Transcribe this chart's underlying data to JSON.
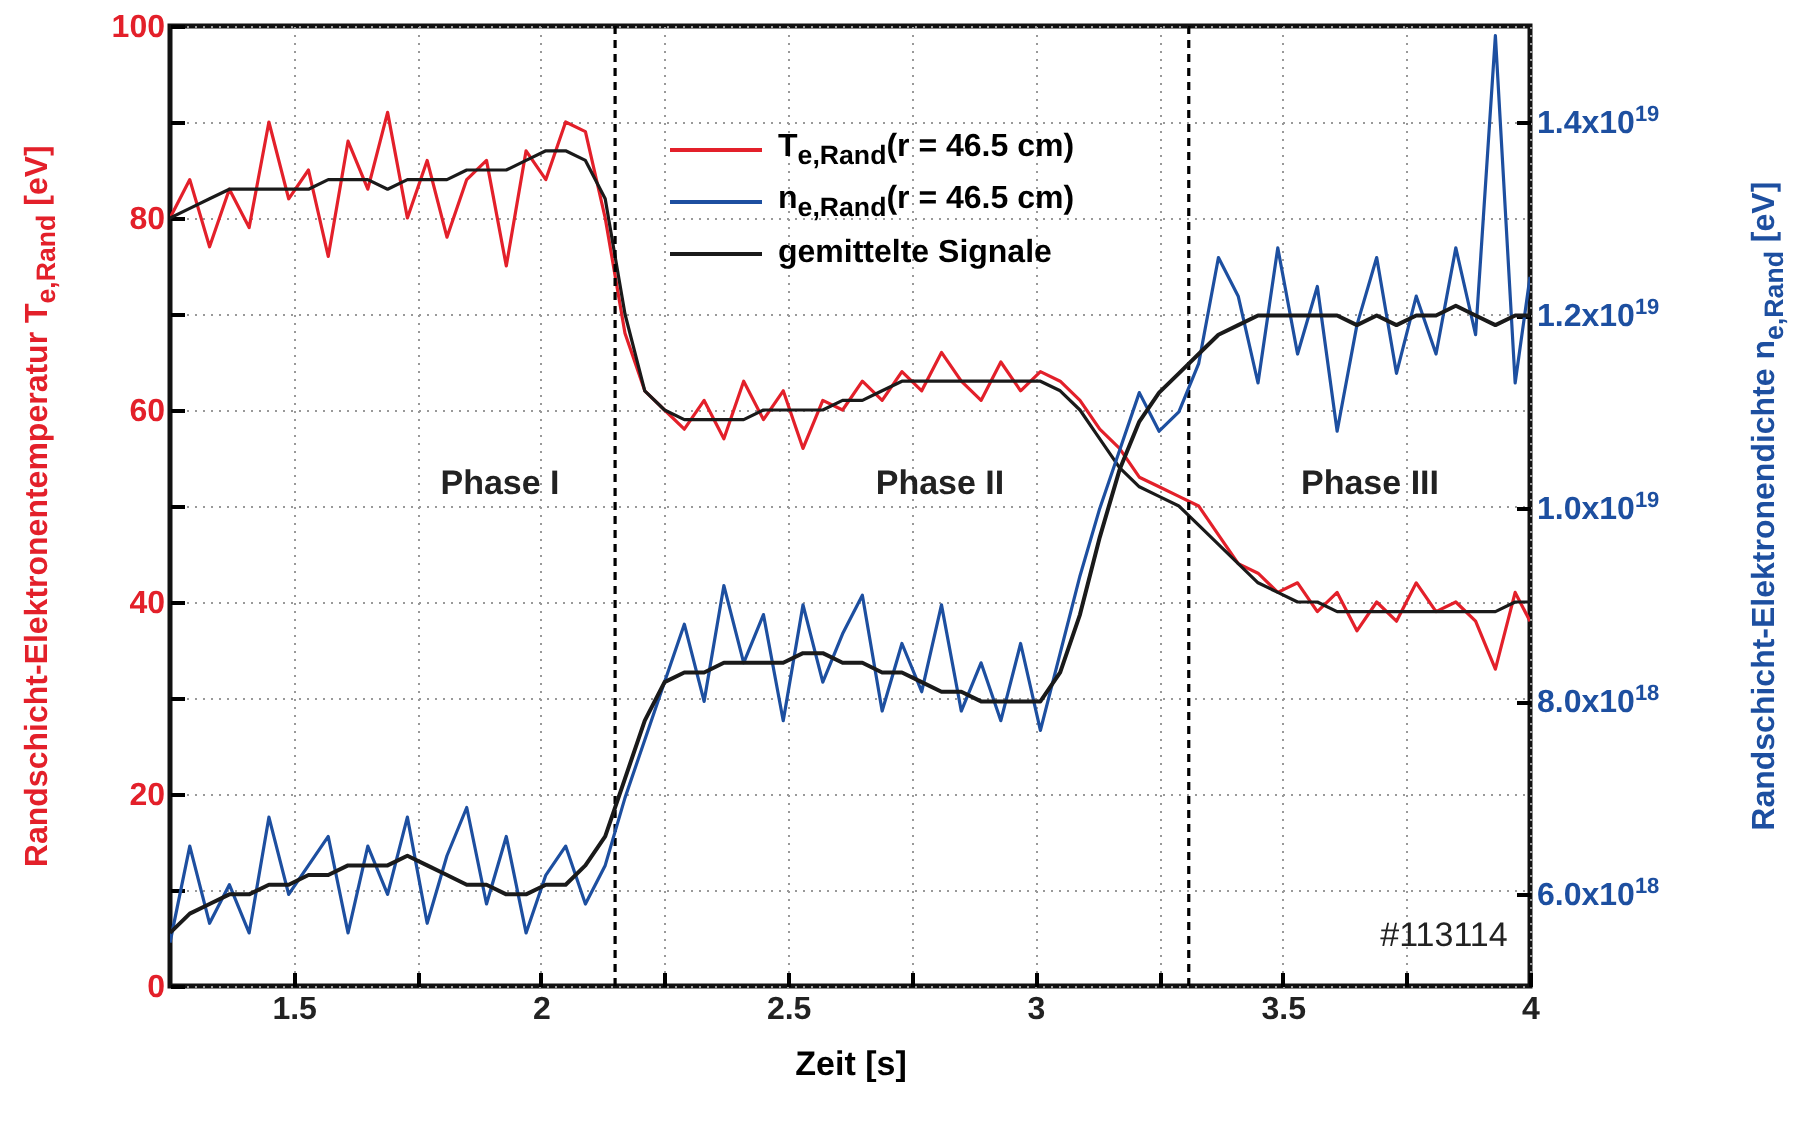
{
  "chart_data": {
    "type": "line",
    "xlabel": "Zeit [s]",
    "ylabel": "Randschicht-Elektronentemperatur T$_{e,Rand}$ [eV]",
    "y2label": "Randschicht-Elektronendichte n$_{e,Rand}$ [eV]",
    "x": [
      1.25,
      1.29,
      1.33,
      1.37,
      1.41,
      1.45,
      1.49,
      1.53,
      1.57,
      1.61,
      1.65,
      1.69,
      1.73,
      1.77,
      1.81,
      1.85,
      1.89,
      1.93,
      1.97,
      2.01,
      2.05,
      2.09,
      2.13,
      2.17,
      2.21,
      2.25,
      2.29,
      2.33,
      2.37,
      2.41,
      2.45,
      2.49,
      2.53,
      2.57,
      2.61,
      2.65,
      2.69,
      2.73,
      2.77,
      2.81,
      2.85,
      2.89,
      2.93,
      2.97,
      3.01,
      3.05,
      3.09,
      3.13,
      3.17,
      3.21,
      3.25,
      3.29,
      3.33,
      3.37,
      3.41,
      3.45,
      3.49,
      3.53,
      3.57,
      3.61,
      3.65,
      3.69,
      3.73,
      3.77,
      3.81,
      3.85,
      3.89,
      3.93,
      3.97,
      4.0
    ],
    "series": [
      {
        "name": "T$_{e,Rand}$(r = 46.5 cm)",
        "color": "#e3202a",
        "values": [
          80,
          84,
          77,
          83,
          79,
          90,
          82,
          85,
          76,
          88,
          83,
          91,
          80,
          86,
          78,
          84,
          86,
          75,
          87,
          84,
          90,
          89,
          80,
          68,
          62,
          60,
          58,
          61,
          57,
          63,
          59,
          62,
          56,
          61,
          60,
          63,
          61,
          64,
          62,
          66,
          63,
          61,
          65,
          62,
          64,
          63,
          61,
          58,
          56,
          53,
          52,
          51,
          50,
          47,
          44,
          43,
          41,
          42,
          39,
          41,
          37,
          40,
          38,
          42,
          39,
          40,
          38,
          33,
          41,
          38
        ]
      },
      {
        "name": "n$_{e,Rand}$(r = 46.5 cm)",
        "color": "#1d4fa0",
        "axis": "y2",
        "values": [
          5.5e+18,
          6.5e+18,
          5.7e+18,
          6.1e+18,
          5.6e+18,
          6.8e+18,
          6e+18,
          6.3e+18,
          6.6e+18,
          5.6e+18,
          6.5e+18,
          6e+18,
          6.8e+18,
          5.7e+18,
          6.4e+18,
          6.9e+18,
          5.9e+18,
          6.6e+18,
          5.6e+18,
          6.2e+18,
          6.5e+18,
          5.9e+18,
          6.3e+18,
          7e+18,
          7.6e+18,
          8.2e+18,
          8.8e+18,
          8e+18,
          9.2e+18,
          8.4e+18,
          8.9e+18,
          7.8e+18,
          9e+18,
          8.2e+18,
          8.7e+18,
          9.1e+18,
          7.9e+18,
          8.6e+18,
          8.1e+18,
          9e+18,
          7.9e+18,
          8.4e+18,
          7.8e+18,
          8.6e+18,
          7.7e+18,
          8.5e+18,
          9.3e+18,
          1e+19,
          1.06e+19,
          1.12e+19,
          1.08e+19,
          1.1e+19,
          1.15e+19,
          1.26e+19,
          1.22e+19,
          1.13e+19,
          1.27e+19,
          1.16e+19,
          1.23e+19,
          1.08e+19,
          1.19e+19,
          1.26e+19,
          1.14e+19,
          1.22e+19,
          1.16e+19,
          1.27e+19,
          1.18e+19,
          1.49e+19,
          1.13e+19,
          1.24e+19
        ]
      },
      {
        "name": "gemittelte Signale",
        "color": "#1a1a1a",
        "values": [
          80,
          81,
          82,
          83,
          83,
          83,
          83,
          83,
          84,
          84,
          84,
          83,
          84,
          84,
          84,
          85,
          85,
          85,
          86,
          87,
          87,
          86,
          82,
          70,
          62,
          60,
          59,
          59,
          59,
          59,
          60,
          60,
          60,
          60,
          61,
          61,
          62,
          63,
          63,
          63,
          63,
          63,
          63,
          63,
          63,
          62,
          60,
          57,
          54,
          52,
          51,
          50,
          48,
          46,
          44,
          42,
          41,
          40,
          40,
          39,
          39,
          39,
          39,
          39,
          39,
          39,
          39,
          39,
          40,
          40
        ]
      },
      {
        "color": "#1a1a1a",
        "axis": "y2",
        "values": [
          5.6e+18,
          5.8e+18,
          5.9e+18,
          6e+18,
          6e+18,
          6.1e+18,
          6.1e+18,
          6.2e+18,
          6.2e+18,
          6.3e+18,
          6.3e+18,
          6.3e+18,
          6.4e+18,
          6.3e+18,
          6.2e+18,
          6.1e+18,
          6.1e+18,
          6e+18,
          6e+18,
          6.1e+18,
          6.1e+18,
          6.3e+18,
          6.6e+18,
          7.2e+18,
          7.8e+18,
          8.2e+18,
          8.3e+18,
          8.3e+18,
          8.4e+18,
          8.4e+18,
          8.4e+18,
          8.4e+18,
          8.5e+18,
          8.5e+18,
          8.4e+18,
          8.4e+18,
          8.3e+18,
          8.3e+18,
          8.2e+18,
          8.1e+18,
          8.1e+18,
          8e+18,
          8e+18,
          8e+18,
          8e+18,
          8.3e+18,
          8.9e+18,
          9.7e+18,
          1.04e+19,
          1.09e+19,
          1.12e+19,
          1.14e+19,
          1.16e+19,
          1.18e+19,
          1.19e+19,
          1.2e+19,
          1.2e+19,
          1.2e+19,
          1.2e+19,
          1.2e+19,
          1.19e+19,
          1.2e+19,
          1.19e+19,
          1.2e+19,
          1.2e+19,
          1.21e+19,
          1.2e+19,
          1.19e+19,
          1.2e+19,
          1.2e+19
        ]
      }
    ],
    "xlim": [
      1.25,
      4.0
    ],
    "xticks": [
      1.5,
      {
        "value": 1.75,
        "label": null
      },
      2.0,
      {
        "value": 2.25,
        "label": null
      },
      2.5,
      {
        "value": 2.75,
        "label": null
      },
      3.0,
      {
        "value": 3.25,
        "label": null
      },
      3.5,
      {
        "value": 3.75,
        "label": null
      },
      4.0
    ],
    "ylim": [
      0,
      100
    ],
    "yticks": [
      0,
      {
        "value": 10,
        "label": null
      },
      20,
      {
        "value": 30,
        "label": null
      },
      40,
      {
        "value": 50,
        "label": null
      },
      60,
      {
        "value": 70,
        "label": null
      },
      80,
      {
        "value": 90,
        "label": null
      },
      100
    ],
    "y2lim": [
      5.05e+18,
      1.5e+19
    ],
    "y2ticks": [
      {
        "value": 6e+18,
        "label": "6.0x10$^{18}$"
      },
      {
        "value": 8e+18,
        "label": "8.0x10$^{18}$"
      },
      {
        "value": 1e+19,
        "label": "1.0x10$^{19}$"
      },
      {
        "value": 1.2e+19,
        "label": "1.2x10$^{19}$"
      },
      {
        "value": 1.4e+19,
        "label": "1.4x10$^{19}$"
      }
    ],
    "grid": true,
    "legend": "top",
    "ref_lines": [
      {
        "axis": "x",
        "value": 2.15,
        "line_style": "dashed"
      },
      {
        "axis": "x",
        "value": 3.31,
        "line_style": "dashed"
      }
    ],
    "annotations": [
      "Phase I",
      "Phase II",
      "Phase III",
      "#113114"
    ]
  }
}
